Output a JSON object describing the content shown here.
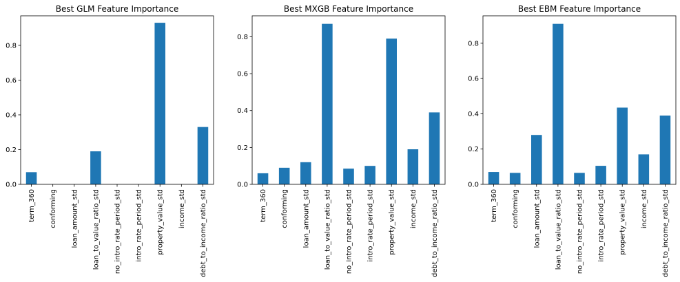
{
  "chart_data": [
    {
      "type": "bar",
      "title": "Best GLM Feature Importance",
      "xlabel": "",
      "ylabel": "",
      "color": "#1f77b4",
      "categories": [
        "term_360",
        "conforming",
        "loan_amount_std",
        "loan_to_value_ratio_std",
        "no_intro_rate_period_std",
        "intro_rate_period_std",
        "property_value_std",
        "income_std",
        "debt_to_income_ratio_std"
      ],
      "values": [
        0.07,
        0.0,
        0.0,
        0.19,
        0.0,
        0.0,
        0.93,
        0.0,
        0.33
      ],
      "ylim": [
        0,
        0.97
      ],
      "yticks": [
        "0.0",
        "0.2",
        "0.4",
        "0.6",
        "0.8"
      ],
      "grid": false,
      "legend": "none"
    },
    {
      "type": "bar",
      "title": "Best MXGB Feature Importance",
      "xlabel": "",
      "ylabel": "",
      "color": "#1f77b4",
      "categories": [
        "term_360",
        "conforming",
        "loan_amount_std",
        "loan_to_value_ratio_std",
        "no_intro_rate_period_std",
        "intro_rate_period_std",
        "property_value_std",
        "income_std",
        "debt_to_income_ratio_std"
      ],
      "values": [
        0.06,
        0.09,
        0.12,
        0.87,
        0.085,
        0.1,
        0.79,
        0.19,
        0.39
      ],
      "ylim": [
        0,
        0.9135
      ],
      "yticks": [
        "0.0",
        "0.2",
        "0.4",
        "0.6",
        "0.8"
      ],
      "grid": false,
      "legend": "none"
    },
    {
      "type": "bar",
      "title": "Best EBM Feature Importance",
      "xlabel": "",
      "ylabel": "",
      "color": "#1f77b4",
      "categories": [
        "term_360",
        "conforming",
        "loan_amount_std",
        "loan_to_value_ratio_std",
        "no_intro_rate_period_std",
        "intro_rate_period_std",
        "property_value_std",
        "income_std",
        "debt_to_income_ratio_std"
      ],
      "values": [
        0.07,
        0.065,
        0.28,
        0.91,
        0.065,
        0.105,
        0.435,
        0.17,
        0.39
      ],
      "ylim": [
        0,
        0.9555
      ],
      "yticks": [
        "0.0",
        "0.2",
        "0.4",
        "0.6",
        "0.8"
      ],
      "grid": false,
      "legend": "none"
    }
  ]
}
